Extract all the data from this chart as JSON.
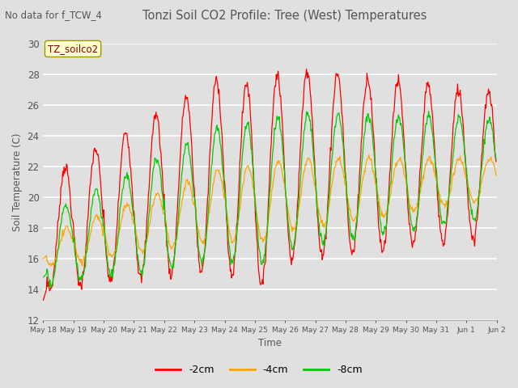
{
  "title": "Tonzi Soil CO2 Profile: Tree (West) Temperatures",
  "subtitle": "No data for f_TCW_4",
  "xlabel": "Time",
  "ylabel": "Soil Temperature (C)",
  "ylim": [
    12,
    30
  ],
  "legend_label": "TZ_soilco2",
  "series_labels": [
    "-2cm",
    "-4cm",
    "-8cm"
  ],
  "series_colors": [
    "#ff0000",
    "#ffa500",
    "#00cc00"
  ],
  "background_color": "#e0e0e0",
  "x_tick_labels": [
    "May 18",
    "May 19",
    "May 20",
    "May 21",
    "May 22",
    "May 23",
    "May 24",
    "May 25",
    "May 26",
    "May 27",
    "May 28",
    "May 29",
    "May 30",
    "May 31",
    "Jun 1",
    "Jun 2"
  ],
  "yticks": [
    12,
    14,
    16,
    18,
    20,
    22,
    24,
    26,
    28,
    30
  ]
}
